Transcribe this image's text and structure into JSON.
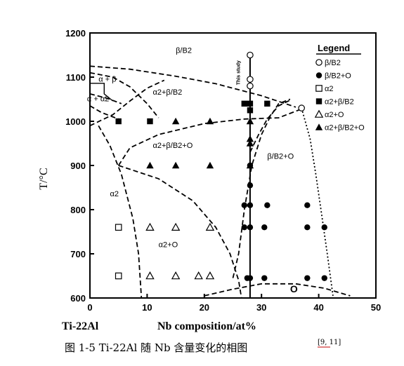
{
  "chart_data": {
    "type": "scatter",
    "x_axis": {
      "range": [
        0,
        50
      ],
      "ticks": [
        "0",
        "10",
        "20",
        "30",
        "40",
        "50"
      ],
      "label_left": "Ti-22Al",
      "label": "Nb composition/at%"
    },
    "y_axis": {
      "range": [
        600,
        1200
      ],
      "ticks": [
        "600",
        "700",
        "800",
        "900",
        "1000",
        "1100",
        "1200"
      ],
      "label": "T/°C"
    },
    "grid": false,
    "legend_position": "top-right",
    "legend": {
      "title": "Legend",
      "entries": [
        "β/B2",
        "β/B2+O",
        "α2",
        "α2+β/B2",
        "α2+O",
        "α2+β/B2+O"
      ]
    },
    "region_labels": [
      {
        "text": "β/B2",
        "x": 15,
        "y": 1155
      },
      {
        "text": "α + β",
        "x": 1.5,
        "y": 1090
      },
      {
        "text": "α + α2",
        "x": -0.5,
        "y": 1045
      },
      {
        "text": "α2+β/B2",
        "x": 11,
        "y": 1060
      },
      {
        "text": "α2+β/B2+O",
        "x": 11,
        "y": 940
      },
      {
        "text": "β/B2+O",
        "x": 31,
        "y": 915
      },
      {
        "text": "α2",
        "x": 3.5,
        "y": 830
      },
      {
        "text": "α2+O",
        "x": 12,
        "y": 715
      },
      {
        "text": "O",
        "x": 35,
        "y": 613
      }
    ],
    "vertical_label": {
      "text": "This study",
      "x": 26.2,
      "y": 1110
    },
    "boundaries": [
      {
        "style": "dashed",
        "points": [
          [
            0,
            1125
          ],
          [
            7,
            1118
          ],
          [
            15,
            1102
          ],
          [
            22,
            1085
          ],
          [
            30,
            1058
          ],
          [
            36,
            1032
          ]
        ]
      },
      {
        "style": "dashed",
        "points": [
          [
            0,
            1110
          ],
          [
            4,
            1100
          ],
          [
            7,
            1078
          ],
          [
            10,
            1040
          ],
          [
            12,
            1008
          ]
        ]
      },
      {
        "style": "solid",
        "points": [
          [
            0,
            1086
          ],
          [
            2.5,
            1086
          ],
          [
            2.5,
            1062
          ],
          [
            4,
            1046
          ]
        ]
      },
      {
        "style": "dashed",
        "points": [
          [
            0,
            1062
          ],
          [
            3,
            1052
          ],
          [
            5.5,
            1040
          ]
        ]
      },
      {
        "style": "dashed",
        "points": [
          [
            0,
            1035
          ],
          [
            2,
            1020
          ],
          [
            5,
            1005
          ]
        ]
      },
      {
        "style": "dashed",
        "points": [
          [
            0,
            990
          ],
          [
            4,
            1015
          ],
          [
            7,
            1046
          ],
          [
            10,
            1075
          ],
          [
            13,
            1093
          ]
        ]
      },
      {
        "style": "dashed",
        "points": [
          [
            1.5,
            990
          ],
          [
            3.5,
            945
          ],
          [
            5.5,
            880
          ],
          [
            7.5,
            780
          ],
          [
            8.5,
            700
          ],
          [
            9,
            600
          ]
        ]
      },
      {
        "style": "dashed",
        "points": [
          [
            5,
            900
          ],
          [
            7,
            940
          ],
          [
            12,
            970
          ],
          [
            20,
            995
          ],
          [
            27,
            1005
          ],
          [
            33,
            1008
          ],
          [
            37,
            1028
          ]
        ]
      },
      {
        "style": "dashed",
        "points": [
          [
            5,
            900
          ],
          [
            12,
            870
          ],
          [
            18,
            820
          ],
          [
            22,
            760
          ],
          [
            24.5,
            700
          ],
          [
            26,
            640
          ],
          [
            26.5,
            600
          ]
        ]
      },
      {
        "style": "dashed",
        "points": [
          [
            25,
            645
          ],
          [
            26,
            700
          ],
          [
            27,
            800
          ],
          [
            28.3,
            900
          ],
          [
            30,
            970
          ],
          [
            31.5,
            1010
          ],
          [
            33,
            1040
          ],
          [
            35,
            1050
          ]
        ]
      },
      {
        "style": "dashed",
        "points": [
          [
            28,
            930
          ],
          [
            29.5,
            970
          ],
          [
            31,
            1005
          ],
          [
            33,
            1035
          ],
          [
            35,
            1048
          ]
        ]
      },
      {
        "style": "dotted",
        "points": [
          [
            37,
            1030
          ],
          [
            38.5,
            960
          ],
          [
            39.5,
            880
          ],
          [
            40.5,
            790
          ],
          [
            41.5,
            700
          ],
          [
            42.5,
            605
          ]
        ]
      },
      {
        "style": "dashed",
        "points": [
          [
            20,
            605
          ],
          [
            25,
            620
          ],
          [
            30,
            632
          ],
          [
            36,
            632
          ],
          [
            41,
            622
          ],
          [
            45.5,
            605
          ]
        ]
      }
    ],
    "series": [
      {
        "name": "β/B2",
        "marker": "open-circle",
        "points": [
          [
            28,
            1150
          ],
          [
            28,
            1095
          ],
          [
            28,
            1080
          ],
          [
            37,
            1030
          ]
        ]
      },
      {
        "name": "β/B2+O",
        "marker": "filled-circle",
        "points": [
          [
            28,
            900
          ],
          [
            28,
            855
          ],
          [
            28,
            810
          ],
          [
            28,
            760
          ],
          [
            28,
            645
          ],
          [
            27.5,
            645
          ],
          [
            27,
            760
          ],
          [
            27,
            810
          ],
          [
            31,
            810
          ],
          [
            30.5,
            760
          ],
          [
            30.5,
            645
          ],
          [
            38,
            810
          ],
          [
            38,
            760
          ],
          [
            38,
            645
          ],
          [
            41,
            760
          ],
          [
            41,
            645
          ]
        ]
      },
      {
        "name": "α2",
        "marker": "open-square",
        "points": [
          [
            5,
            760
          ],
          [
            5,
            650
          ]
        ]
      },
      {
        "name": "α2+β/B2",
        "marker": "filled-square",
        "points": [
          [
            5,
            1000
          ],
          [
            10.5,
            1000
          ],
          [
            27,
            1040
          ],
          [
            28,
            1040
          ],
          [
            28,
            1025
          ],
          [
            31,
            1040
          ]
        ]
      },
      {
        "name": "α2+O",
        "marker": "open-triangle",
        "points": [
          [
            10.5,
            760
          ],
          [
            15,
            760
          ],
          [
            21,
            760
          ],
          [
            10.5,
            650
          ],
          [
            15,
            650
          ],
          [
            19,
            650
          ],
          [
            21,
            650
          ]
        ]
      },
      {
        "name": "α2+β/B2+O",
        "marker": "filled-triangle",
        "points": [
          [
            15,
            1000
          ],
          [
            21,
            1000
          ],
          [
            28,
            1000
          ],
          [
            28,
            960
          ],
          [
            10.5,
            900
          ],
          [
            15,
            900
          ],
          [
            21,
            900
          ],
          [
            28,
            900
          ],
          [
            28,
            950
          ]
        ]
      }
    ]
  },
  "caption": {
    "text": "图 1-5 Ti-22Al 随 Nb 含量变化的相图",
    "ref": "[9, 11]"
  }
}
